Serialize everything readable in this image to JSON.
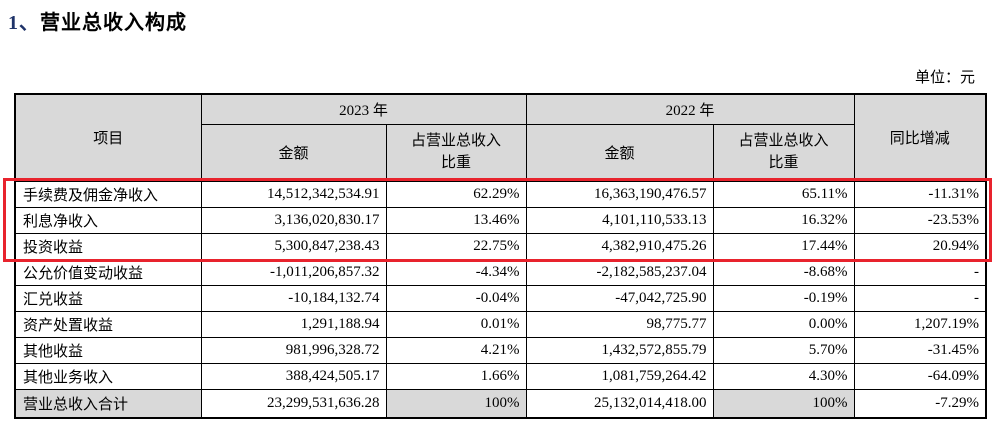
{
  "page": {
    "title_number": "1、",
    "title_text": "营业总收入构成",
    "unit_label": "单位：元"
  },
  "table": {
    "header": {
      "item": "项目",
      "year_2023": "2023 年",
      "year_2022": "2022 年",
      "amount": "金额",
      "proportion": "占营业总收入比重",
      "yoy": "同比增减"
    },
    "rows": [
      {
        "label": "手续费及佣金净收入",
        "values": [
          "14,512,342,534.91",
          "62.29%",
          "16,363,190,476.57",
          "65.11%",
          "-11.31%"
        ],
        "is_total": false
      },
      {
        "label": "利息净收入",
        "values": [
          "3,136,020,830.17",
          "13.46%",
          "4,101,110,533.13",
          "16.32%",
          "-23.53%"
        ],
        "is_total": false
      },
      {
        "label": "投资收益",
        "values": [
          "5,300,847,238.43",
          "22.75%",
          "4,382,910,475.26",
          "17.44%",
          "20.94%"
        ],
        "is_total": false
      },
      {
        "label": "公允价值变动收益",
        "values": [
          "-1,011,206,857.32",
          "-4.34%",
          "-2,182,585,237.04",
          "-8.68%",
          "-"
        ],
        "is_total": false
      },
      {
        "label": "汇兑收益",
        "values": [
          "-10,184,132.74",
          "-0.04%",
          "-47,042,725.90",
          "-0.19%",
          "-"
        ],
        "is_total": false
      },
      {
        "label": "资产处置收益",
        "values": [
          "1,291,188.94",
          "0.01%",
          "98,775.77",
          "0.00%",
          "1,207.19%"
        ],
        "is_total": false
      },
      {
        "label": "其他收益",
        "values": [
          "981,996,328.72",
          "4.21%",
          "1,432,572,855.79",
          "5.70%",
          "-31.45%"
        ],
        "is_total": false
      },
      {
        "label": "其他业务收入",
        "values": [
          "388,424,505.17",
          "1.66%",
          "1,081,759,264.42",
          "4.30%",
          "-64.09%"
        ],
        "is_total": false
      },
      {
        "label": "营业总收入合计",
        "values": [
          "23,299,531,636.28",
          "100%",
          "25,132,014,418.00",
          "100%",
          "-7.29%"
        ],
        "is_total": true
      }
    ],
    "annotation": {
      "type": "red-highlight-box",
      "rows_covered": [
        "手续费及佣金净收入",
        "利息净收入",
        "投资收益"
      ],
      "color": "#e8232d"
    }
  },
  "colors": {
    "header_bg": "#d9d9d9",
    "title_number_color": "#1f3369",
    "table_border": "#000000"
  }
}
